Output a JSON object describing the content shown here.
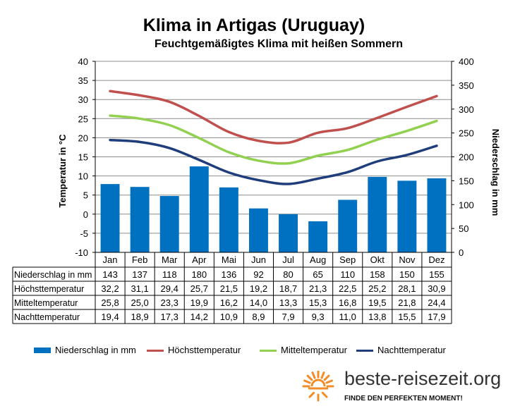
{
  "title": "Klima in Artigas (Uruguay)",
  "subtitle": "Feuchtgemäßigtes Klima mit heißen Sommern",
  "chart_data": {
    "type": "bar+line",
    "categories": [
      "Jan",
      "Feb",
      "Mar",
      "Apr",
      "Mai",
      "Jun",
      "Jul",
      "Aug",
      "Sep",
      "Okt",
      "Nov",
      "Dez"
    ],
    "y_left": {
      "label": "Temperatur in °C",
      "min": -10,
      "max": 40,
      "step": 5
    },
    "y_right": {
      "label": "Niederschlag in mm",
      "min": 0,
      "max": 400,
      "step": 50
    },
    "grid": true,
    "legend_position": "bottom",
    "series": [
      {
        "name": "Niederschlag in mm",
        "kind": "bar",
        "axis": "right",
        "color": "#0070c0",
        "values": [
          143,
          137,
          118,
          180,
          136,
          92,
          80,
          65,
          110,
          158,
          150,
          155
        ]
      },
      {
        "name": "Höchsttemperatur",
        "kind": "line",
        "axis": "left",
        "color": "#c0504d",
        "values": [
          32.2,
          31.1,
          29.4,
          25.7,
          21.5,
          19.2,
          18.7,
          21.3,
          22.5,
          25.2,
          28.1,
          30.9
        ]
      },
      {
        "name": "Mitteltemperatur",
        "kind": "line",
        "axis": "left",
        "color": "#92d050",
        "values": [
          25.8,
          25.0,
          23.3,
          19.9,
          16.2,
          14.0,
          13.3,
          15.3,
          16.8,
          19.5,
          21.8,
          24.4
        ]
      },
      {
        "name": "Nachttemperatur",
        "kind": "line",
        "axis": "left",
        "color": "#1f3d7a",
        "values": [
          19.4,
          18.9,
          17.3,
          14.2,
          10.9,
          8.9,
          7.9,
          9.3,
          11.0,
          13.8,
          15.5,
          17.9
        ]
      }
    ],
    "table": {
      "rows": [
        {
          "label": "Niederschlag in mm",
          "values": [
            "143",
            "137",
            "118",
            "180",
            "136",
            "92",
            "80",
            "65",
            "110",
            "158",
            "150",
            "155"
          ]
        },
        {
          "label": "Höchsttemperatur",
          "values": [
            "32,2",
            "31,1",
            "29,4",
            "25,7",
            "21,5",
            "19,2",
            "18,7",
            "21,3",
            "22,5",
            "25,2",
            "28,1",
            "30,9"
          ]
        },
        {
          "label": "Mitteltemperatur",
          "values": [
            "25,8",
            "25,0",
            "23,3",
            "19,9",
            "16,2",
            "14,0",
            "13,3",
            "15,3",
            "16,8",
            "19,5",
            "21,8",
            "24,4"
          ]
        },
        {
          "label": "Nachttemperatur",
          "values": [
            "19,4",
            "18,9",
            "17,3",
            "14,2",
            "10,9",
            "8,9",
            "7,9",
            "9,3",
            "11,0",
            "13,8",
            "15,5",
            "17,9"
          ]
        }
      ]
    }
  },
  "legend": [
    {
      "label": "Niederschlag in mm",
      "kind": "bar",
      "color": "#0070c0"
    },
    {
      "label": "Höchsttemperatur",
      "kind": "line",
      "color": "#c0504d"
    },
    {
      "label": "Mitteltemperatur",
      "kind": "line",
      "color": "#92d050"
    },
    {
      "label": "Nachttemperatur",
      "kind": "line",
      "color": "#1f3d7a"
    }
  ],
  "brand": {
    "name": "beste-reisezeit.org",
    "tagline": "FINDE DEN PERFEKTEN MOMENT!",
    "icon": "sun-icon",
    "icon_color": "#f28c28"
  }
}
